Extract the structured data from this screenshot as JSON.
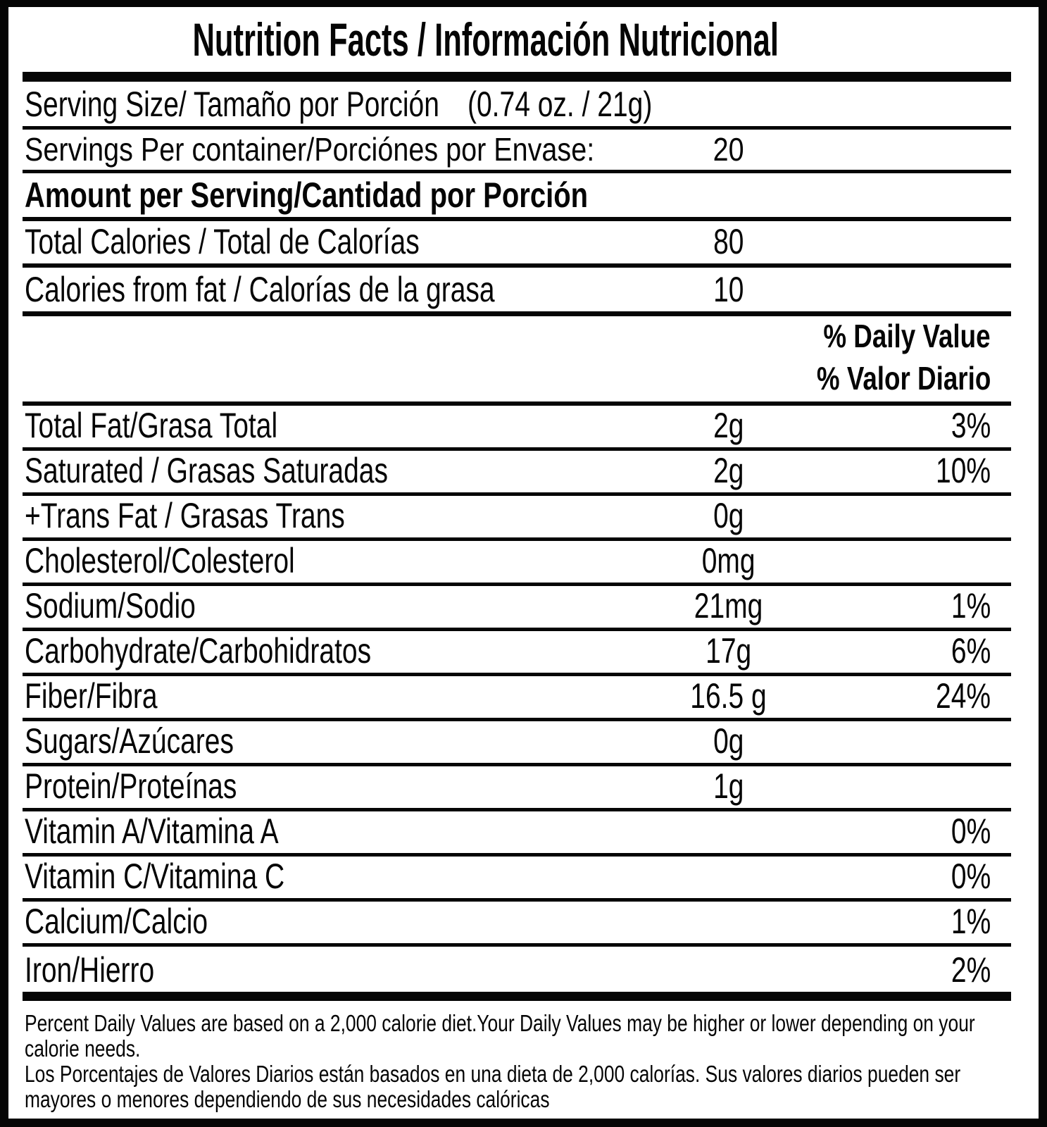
{
  "title": "Nutrition Facts / Información Nutricional",
  "serving": {
    "size_label": "Serving Size/ Tamaño por Porción",
    "size_value": "(0.74 oz. / 21g)",
    "per_container_label": "Servings Per container/Porciónes por Envase:",
    "per_container_value": "20"
  },
  "amount_header": "Amount per Serving/Cantidad por Porción",
  "calories_rows": [
    {
      "label": "Total Calories / Total de Calorías",
      "value": "80"
    },
    {
      "label": "Calories from fat / Calorías de la grasa",
      "value": "10"
    }
  ],
  "daily_value_header": {
    "line1": "% Daily Value",
    "line2": "% Valor Diario"
  },
  "nutrient_rows": [
    {
      "label": "Total Fat/Grasa Total",
      "amount": "2g",
      "dv": "3%"
    },
    {
      "label": "Saturated / Grasas Saturadas",
      "amount": "2g",
      "dv": "10%"
    },
    {
      "label": "+Trans Fat / Grasas Trans",
      "amount": "0g",
      "dv": ""
    },
    {
      "label": "Cholesterol/Colesterol",
      "amount": "0mg",
      "dv": ""
    },
    {
      "label": "Sodium/Sodio",
      "amount": "21mg",
      "dv": "1%"
    },
    {
      "label": "Carbohydrate/Carbohidratos",
      "amount": "17g",
      "dv": "6%"
    },
    {
      "label": "Fiber/Fibra",
      "amount": "16.5 g",
      "dv": "24%"
    },
    {
      "label": "Sugars/Azúcares",
      "amount": "0g",
      "dv": ""
    },
    {
      "label": "Protein/Proteínas",
      "amount": "1g",
      "dv": ""
    },
    {
      "label": "Vitamin A/Vitamina A",
      "amount": "",
      "dv": "0%"
    },
    {
      "label": "Vitamin C/Vitamina C",
      "amount": "",
      "dv": "0%"
    },
    {
      "label": "Calcium/Calcio",
      "amount": "",
      "dv": "1%"
    },
    {
      "label": "Iron/Hierro",
      "amount": "",
      "dv": "2%"
    }
  ],
  "footnote": {
    "english": "Percent Daily Values are based on a 2,000 calorie diet.Your Daily Values may be higher or lower depending on your calorie needs.",
    "spanish": "Los Porcentajes de Valores Diarios están basados en una dieta de 2,000 calorías. Sus valores diarios pueden ser mayores o menores dependiendo de sus necesidades calóricas"
  },
  "colors": {
    "ink": "#050505",
    "background": "#ffffff"
  }
}
